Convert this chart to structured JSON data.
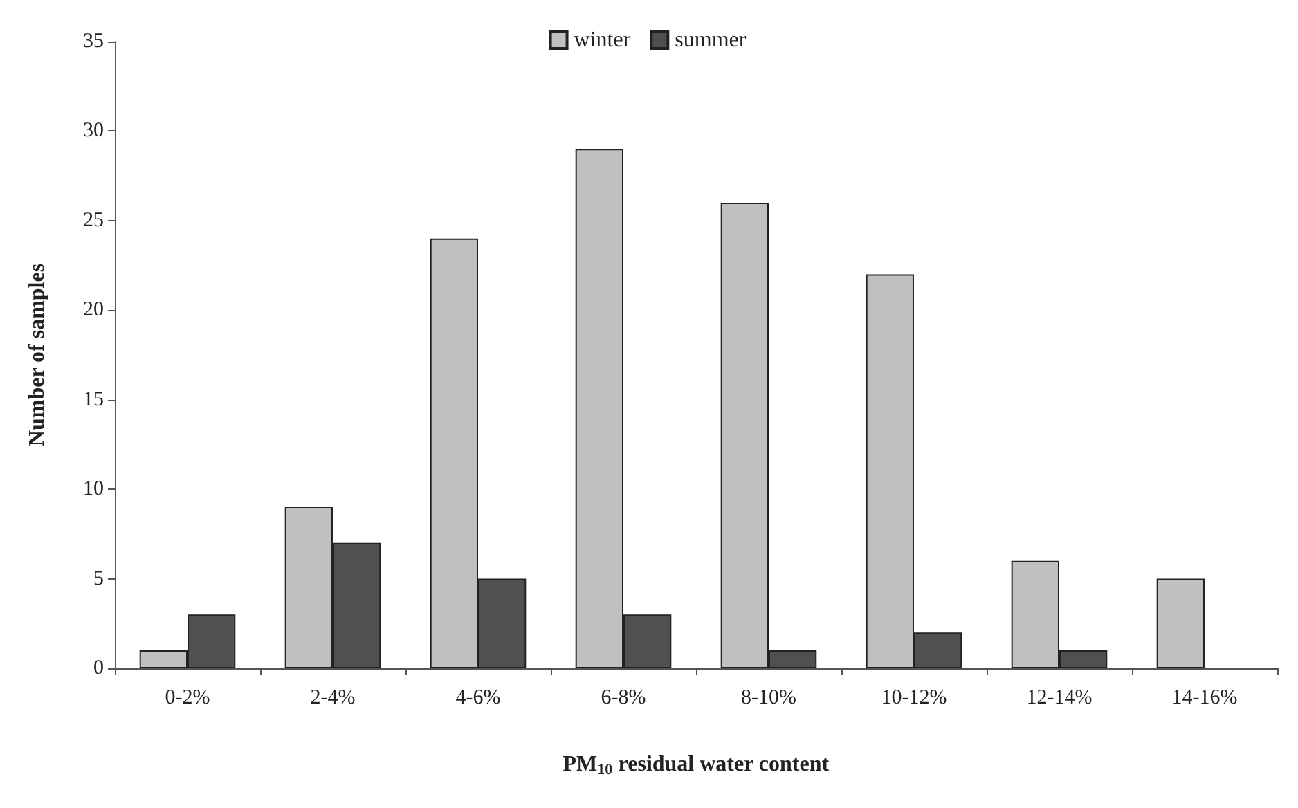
{
  "chart_data": {
    "type": "bar",
    "xlabel": "PM$_{10}$ residual water content",
    "ylabel": "Number of samples",
    "categories": [
      "0-2%",
      "2-4%",
      "4-6%",
      "6-8%",
      "8-10%",
      "10-12%",
      "12-14%",
      "14-16%"
    ],
    "series": [
      {
        "name": "winter",
        "color": "#c0c0c0",
        "values": [
          1,
          9,
          24,
          29,
          26,
          22,
          6,
          5
        ]
      },
      {
        "name": "summer",
        "color": "#505050",
        "values": [
          3,
          7,
          5,
          3,
          1,
          2,
          1,
          null
        ]
      }
    ],
    "ylim": [
      0,
      35
    ],
    "yticks": [
      0,
      5,
      10,
      15,
      20,
      25,
      30,
      35
    ],
    "grid": false,
    "legend": "top"
  }
}
